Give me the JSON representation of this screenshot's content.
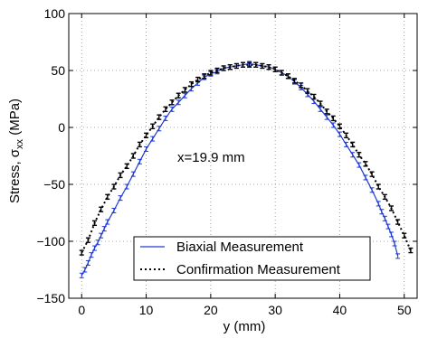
{
  "chart_data": {
    "type": "line",
    "xlabel": "y (mm)",
    "ylabel_main": "Stress, σ",
    "ylabel_sub": "xx",
    "ylabel_unit": " (MPa)",
    "xlim": [
      -2,
      52
    ],
    "ylim": [
      -150,
      100
    ],
    "xticks": [
      0,
      10,
      20,
      30,
      40,
      50
    ],
    "yticks": [
      -150,
      -100,
      -50,
      0,
      50,
      100
    ],
    "xtick_labels": [
      "0",
      "10",
      "20",
      "30",
      "40",
      "50"
    ],
    "ytick_labels": [
      "−150",
      "−100",
      "−50",
      "0",
      "50",
      "100"
    ],
    "grid": true,
    "legend_position": "bottom-center",
    "annotation": "x=19.9 mm",
    "series": [
      {
        "name": "Biaxial Measurement",
        "color": "#1f3bd6",
        "style": "solid",
        "x": [
          0.0,
          0.5,
          1.0,
          1.5,
          2.0,
          2.5,
          3.0,
          3.5,
          4.0,
          5.0,
          6.0,
          7.0,
          8.0,
          9.0,
          10.0,
          11.0,
          12.0,
          13.0,
          14.0,
          15.0,
          16.0,
          17.0,
          18.0,
          19.0,
          20.0,
          21.0,
          22.0,
          23.0,
          24.0,
          25.0,
          26.0,
          27.0,
          28.0,
          29.0,
          30.0,
          31.0,
          32.0,
          33.0,
          34.0,
          35.0,
          36.0,
          37.0,
          38.0,
          39.0,
          40.0,
          41.0,
          42.0,
          43.0,
          44.0,
          45.0,
          46.0,
          46.5,
          47.0,
          47.5,
          48.0,
          48.5,
          49.0
        ],
        "y": [
          -130,
          -125,
          -119,
          -112,
          -106,
          -101,
          -95,
          -89,
          -83,
          -73,
          -62,
          -52,
          -41,
          -30,
          -19,
          -10,
          -1,
          8,
          16,
          22,
          28,
          34,
          39,
          44,
          47,
          49,
          52,
          53,
          54,
          55,
          56,
          55,
          54,
          53,
          51,
          48,
          45,
          40,
          35,
          29,
          23,
          16,
          9,
          2,
          -6,
          -15,
          -24,
          -33,
          -44,
          -55,
          -67,
          -74,
          -80,
          -87,
          -94,
          -102,
          -113
        ]
      },
      {
        "name": "Confirmation Measurement",
        "color": "#000000",
        "style": "dotted",
        "x": [
          0.0,
          1.0,
          2.0,
          3.0,
          4.0,
          5.0,
          6.0,
          7.0,
          8.0,
          9.0,
          10.0,
          11.0,
          12.0,
          13.0,
          14.0,
          15.0,
          16.0,
          17.0,
          18.0,
          19.0,
          20.0,
          21.0,
          22.0,
          23.0,
          24.0,
          25.0,
          26.0,
          27.0,
          28.0,
          29.0,
          30.0,
          31.0,
          32.0,
          33.0,
          34.0,
          35.0,
          36.0,
          37.0,
          38.0,
          39.0,
          40.0,
          41.0,
          42.0,
          43.0,
          44.0,
          45.0,
          46.0,
          47.0,
          48.0,
          49.0,
          50.0,
          51.0
        ],
        "y": [
          -110,
          -99,
          -84,
          -72,
          -61,
          -52,
          -42,
          -34,
          -25,
          -15,
          -7,
          1,
          9,
          16,
          22,
          28,
          33,
          38,
          42,
          45,
          48,
          50,
          52,
          53,
          54,
          55,
          55,
          55,
          54,
          53,
          51,
          48,
          45,
          41,
          37,
          32,
          27,
          21,
          14,
          8,
          1,
          -7,
          -15,
          -24,
          -32,
          -41,
          -52,
          -61,
          -71,
          -83,
          -95,
          -108
        ]
      }
    ]
  }
}
